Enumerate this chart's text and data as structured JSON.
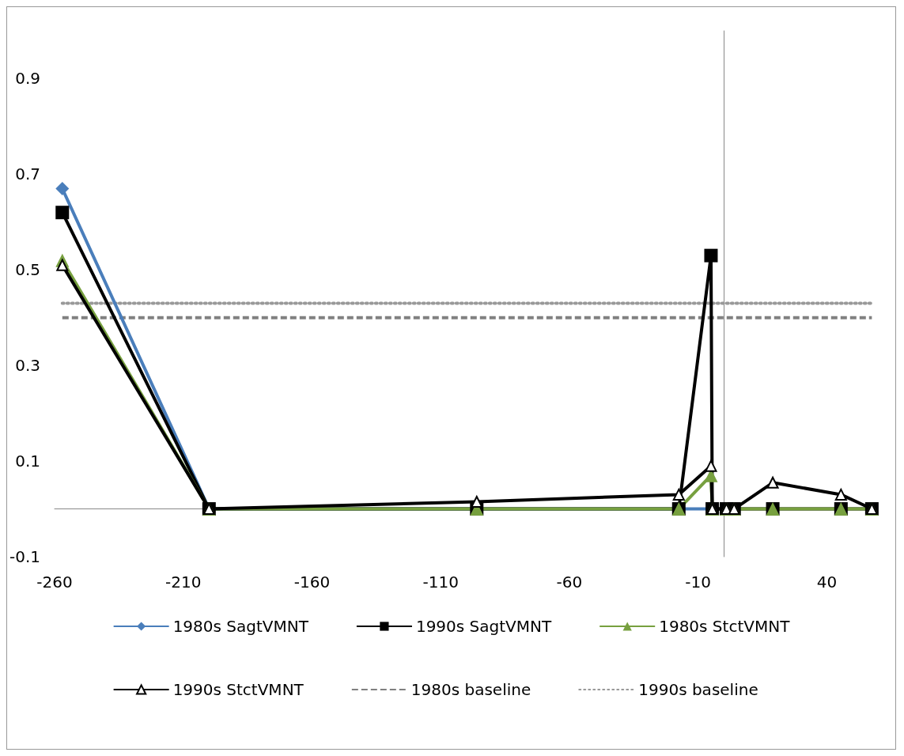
{
  "chart_data": {
    "type": "line",
    "x": [
      -257,
      -200,
      -96,
      -17.5,
      -5,
      -4.5,
      1,
      4,
      19,
      45.5,
      57.5
    ],
    "series": [
      {
        "name": "1980s SagtVMNT",
        "color": "#4a7ebb",
        "marker": "diamond",
        "x": [
          -257,
          -200,
          -17.5,
          -5
        ],
        "values": [
          0.67,
          0,
          0,
          0
        ]
      },
      {
        "name": "1990s SagtVMNT",
        "color": "#000000",
        "marker": "square",
        "values": [
          0.62,
          0,
          0,
          0,
          0.53,
          0,
          0,
          0,
          0,
          0,
          0
        ]
      },
      {
        "name": "1980s StctVMNT",
        "color": "#77a03f",
        "marker": "triangle",
        "values": [
          0.52,
          0,
          0,
          0,
          0.07,
          0,
          0,
          0,
          0,
          0,
          0
        ]
      },
      {
        "name": "1990s StctVMNT",
        "color": "#000000",
        "marker": "triangle",
        "values": [
          0.51,
          0,
          0.015,
          0.03,
          0.09,
          0,
          0,
          0,
          0.055,
          0.03,
          0
        ]
      },
      {
        "name": "1980s baseline",
        "color": "#808080",
        "marker": "none",
        "line_style": "dashed",
        "x": [
          -257,
          57.5
        ],
        "values": [
          0.4,
          0.4
        ]
      },
      {
        "name": "1990s baseline",
        "color": "#999999",
        "marker": "none",
        "line_style": "dotted",
        "x": [
          -257,
          57.5
        ],
        "values": [
          0.43,
          0.43
        ]
      }
    ],
    "xlim": [
      -260,
      58
    ],
    "xticks": [
      -260,
      -210,
      -160,
      -110,
      -60,
      -10,
      40
    ],
    "ylim": [
      -0.1,
      1.0
    ],
    "yticks": [
      -0.1,
      0.1,
      0.3,
      0.5,
      0.7,
      0.9
    ],
    "grid": false,
    "legend": "bottom"
  }
}
